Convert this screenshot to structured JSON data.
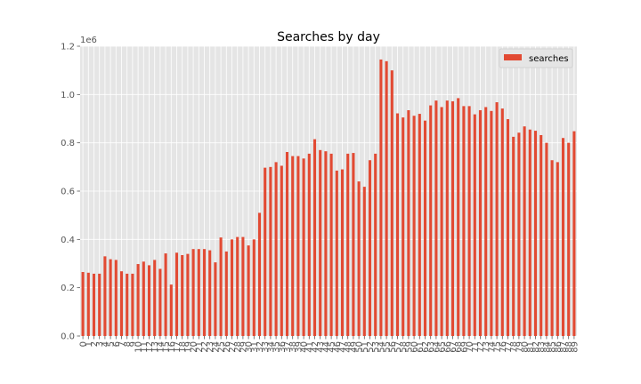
{
  "chart_data": {
    "type": "bar",
    "title": "Searches by day",
    "xlabel": "",
    "ylabel": "",
    "scale_label": "1e6",
    "ylim": [
      0,
      1.2
    ],
    "y_ticks": [
      0.0,
      0.2,
      0.4,
      0.6,
      0.8,
      1.0,
      1.2
    ],
    "y_tick_labels": [
      "0.0",
      "0.2",
      "0.4",
      "0.6",
      "0.8",
      "1.0",
      "1.2"
    ],
    "grid": true,
    "legend_position": "top-right",
    "categories": [
      "0",
      "1",
      "2",
      "3",
      "4",
      "5",
      "6",
      "7",
      "8",
      "9",
      "10",
      "11",
      "12",
      "13",
      "14",
      "15",
      "16",
      "17",
      "18",
      "19",
      "20",
      "21",
      "22",
      "23",
      "24",
      "25",
      "26",
      "27",
      "28",
      "29",
      "30",
      "31",
      "32",
      "33",
      "34",
      "35",
      "36",
      "37",
      "38",
      "39",
      "40",
      "41",
      "42",
      "43",
      "44",
      "45",
      "46",
      "47",
      "48",
      "49",
      "50",
      "51",
      "52",
      "53",
      "54",
      "55",
      "56",
      "57",
      "58",
      "59",
      "60",
      "61",
      "62",
      "63",
      "64",
      "65",
      "66",
      "67",
      "68",
      "69",
      "70",
      "71",
      "72",
      "73",
      "74",
      "75",
      "76",
      "77",
      "78",
      "79",
      "80",
      "81",
      "82",
      "83",
      "84",
      "85",
      "86",
      "87",
      "88",
      "89"
    ],
    "series": [
      {
        "name": "searches",
        "color": "#e24a33",
        "values": [
          0.265,
          0.262,
          0.258,
          0.258,
          0.33,
          0.318,
          0.315,
          0.268,
          0.258,
          0.258,
          0.298,
          0.308,
          0.293,
          0.315,
          0.278,
          0.342,
          0.213,
          0.345,
          0.335,
          0.34,
          0.36,
          0.36,
          0.36,
          0.355,
          0.305,
          0.408,
          0.35,
          0.4,
          0.41,
          0.41,
          0.375,
          0.4,
          0.51,
          0.697,
          0.7,
          0.72,
          0.705,
          0.762,
          0.745,
          0.745,
          0.735,
          0.755,
          0.815,
          0.77,
          0.765,
          0.755,
          0.685,
          0.69,
          0.755,
          0.758,
          0.64,
          0.618,
          0.728,
          0.755,
          1.145,
          1.138,
          1.1,
          0.922,
          0.905,
          0.935,
          0.912,
          0.92,
          0.892,
          0.955,
          0.975,
          0.948,
          0.975,
          0.972,
          0.985,
          0.952,
          0.952,
          0.918,
          0.935,
          0.948,
          0.932,
          0.968,
          0.942,
          0.898,
          0.825,
          0.842,
          0.868,
          0.855,
          0.85,
          0.832,
          0.8,
          0.728,
          0.72,
          0.82,
          0.8,
          0.848
        ]
      }
    ]
  }
}
